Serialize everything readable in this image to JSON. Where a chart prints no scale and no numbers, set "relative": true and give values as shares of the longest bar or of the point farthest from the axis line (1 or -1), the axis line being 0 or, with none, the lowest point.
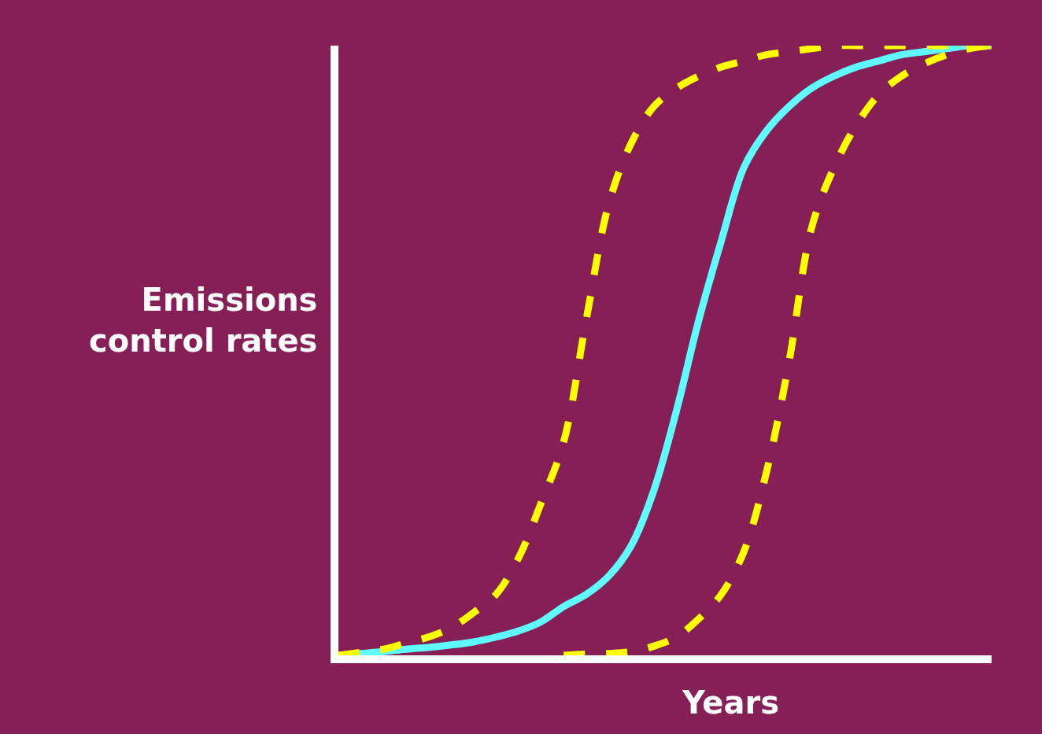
{
  "chart_data": {
    "type": "line",
    "relative": true,
    "xlabel": "Years",
    "ylabel": "Emissions control rates",
    "legend": false,
    "grid": false,
    "categories": [
      null,
      null,
      null,
      null,
      null,
      null,
      null,
      null,
      null,
      null,
      null,
      null,
      null,
      null,
      null,
      null,
      null,
      null,
      null,
      null,
      null,
      null,
      null,
      null,
      null,
      null,
      null,
      null,
      null,
      null
    ],
    "series": [
      {
        "color": "#5ffcff",
        "line_style": "solid",
        "values": [
          0,
          0.003,
          0.006,
          0.01,
          0.013,
          0.017,
          0.022,
          0.03,
          0.04,
          0.055,
          0.08,
          0.1,
          0.13,
          0.18,
          0.27,
          0.4,
          0.55,
          0.68,
          0.8,
          0.86,
          0.9,
          0.93,
          0.95,
          0.965,
          0.975,
          0.985,
          0.99,
          0.995,
          1,
          1
        ]
      },
      {
        "color": "#ffff00",
        "line_style": "dashed",
        "values": [
          0,
          0.005,
          0.01,
          0.02,
          0.03,
          0.045,
          0.07,
          0.1,
          0.16,
          0.25,
          0.35,
          0.55,
          0.74,
          0.84,
          0.9,
          0.93,
          0.95,
          0.965,
          0.975,
          0.985,
          0.99,
          0.995,
          1,
          1,
          1,
          1,
          1,
          1,
          1,
          1
        ]
      },
      {
        "color": "#ffff00",
        "line_style": "dashed",
        "values": [
          null,
          null,
          null,
          null,
          null,
          null,
          null,
          null,
          null,
          null,
          0,
          0.002,
          0.003,
          0.006,
          0.015,
          0.03,
          0.06,
          0.1,
          0.17,
          0.3,
          0.48,
          0.7,
          0.8,
          0.87,
          0.92,
          0.95,
          0.97,
          0.985,
          0.995,
          1
        ]
      }
    ]
  }
}
